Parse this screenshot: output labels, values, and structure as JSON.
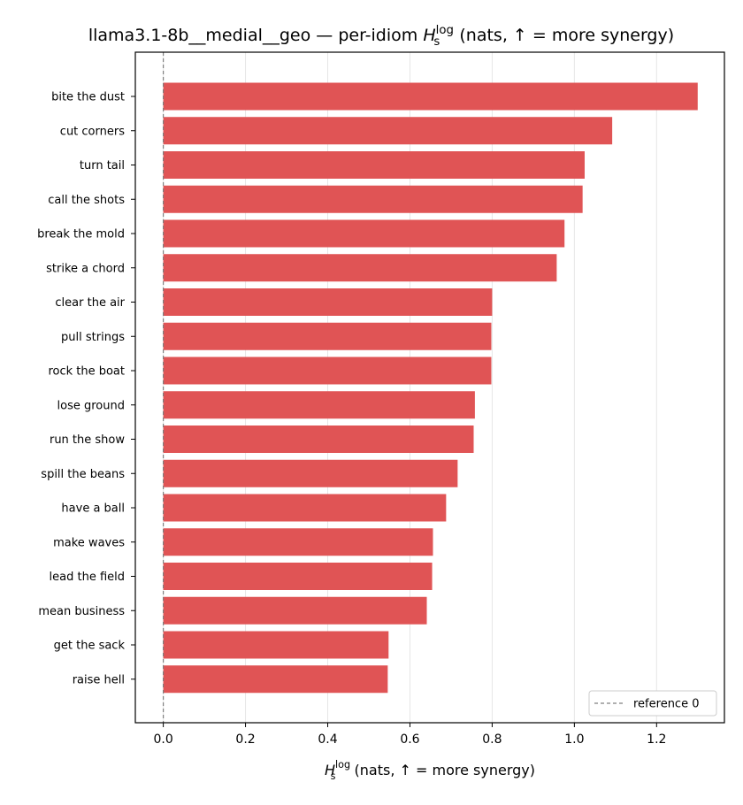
{
  "chart_data": {
    "type": "bar",
    "orientation": "horizontal",
    "title": {
      "prefix": "llama3.1-8b__medial__geo — per-idiom ",
      "symbol": "H",
      "subscript": "s",
      "superscript": "log",
      "suffix": "  (nats, ↑ = more synergy)"
    },
    "xlabel": {
      "symbol": "H",
      "subscript": "s",
      "superscript": "log",
      "suffix": "  (nats, ↑ = more synergy)"
    },
    "categories": [
      "bite the dust",
      "cut corners",
      "turn tail",
      "call the shots",
      "break the mold",
      "strike a chord",
      "clear the air",
      "pull strings",
      "rock the boat",
      "lose ground",
      "run the show",
      "spill the beans",
      "have a ball",
      "make waves",
      "lead the field",
      "mean business",
      "get the sack",
      "raise hell"
    ],
    "values": [
      1.3,
      1.092,
      1.025,
      1.02,
      0.976,
      0.957,
      0.8,
      0.798,
      0.798,
      0.758,
      0.755,
      0.716,
      0.688,
      0.656,
      0.654,
      0.641,
      0.548,
      0.546
    ],
    "xlim": [
      -0.068,
      1.365
    ],
    "xticks": [
      "0.0",
      "0.2",
      "0.4",
      "0.6",
      "0.8",
      "1.0",
      "1.2"
    ],
    "xtick_values": [
      0.0,
      0.2,
      0.4,
      0.6,
      0.8,
      1.0,
      1.2
    ],
    "grid": "x-axis",
    "bar_color": "#e05455",
    "reference_line": {
      "x": 0,
      "label": "reference 0",
      "color": "#808080",
      "style": "dashed"
    },
    "legend_position": "lower-right"
  }
}
